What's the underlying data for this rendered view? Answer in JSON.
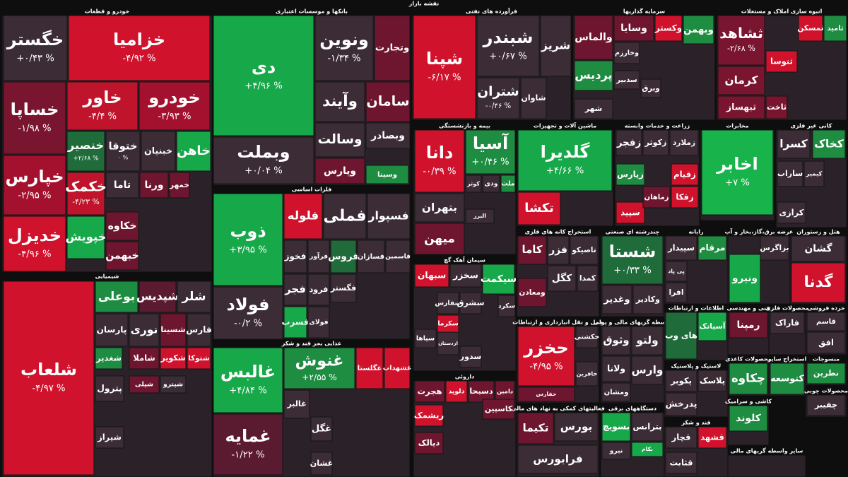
{
  "title": "نقشه بازار",
  "sectors": [
    {
      "name": "خودرو و قطعات",
      "tiles": [
        {
          "symbol": "خگستر",
          "change": "+۰/۴۳ %",
          "color": "#3b2c36"
        },
        {
          "symbol": "خزامیا",
          "change": "-۴/۹۲ %",
          "color": "#d0122c"
        },
        {
          "symbol": "خساپا",
          "change": "-۱/۹۸ %",
          "color": "#7a1530"
        },
        {
          "symbol": "خاور",
          "change": "-۴/۴ %",
          "color": "#c0142c"
        },
        {
          "symbol": "خودرو",
          "change": "-۳/۹۳ %",
          "color": "#a3112e"
        },
        {
          "symbol": "خپارس",
          "change": "-۲/۹۵ %",
          "color": "#a3112e"
        },
        {
          "symbol": "خدیزل",
          "change": "-۴/۹۶ %",
          "color": "#d0122c"
        },
        {
          "symbol": "خنصیر",
          "change": "+۲/۶۸ %",
          "color": "#1f6b3a"
        },
        {
          "symbol": "ختوقا",
          "change": "۰ %",
          "color": "#3b2c36"
        },
        {
          "symbol": "خبنیان",
          "color": "#3b2c36"
        },
        {
          "symbol": "خاهن",
          "color": "#17a84a"
        },
        {
          "symbol": "خکمک",
          "change": "-۴/۲۳ %",
          "color": "#c0142c"
        },
        {
          "symbol": "خپویش",
          "color": "#17a84a"
        },
        {
          "symbol": "تاما",
          "color": "#3b2c36"
        },
        {
          "symbol": "خکاوه",
          "color": "#6e1630"
        },
        {
          "symbol": "خبهمن",
          "color": "#6e1630"
        },
        {
          "symbol": "ورنا",
          "color": "#6e1630"
        },
        {
          "symbol": "خمهر",
          "color": "#6e1630"
        }
      ]
    },
    {
      "name": "بانکها و موسسات اعتباری",
      "tiles": [
        {
          "symbol": "دی",
          "change": "+۴/۹۶ %",
          "color": "#17a84a"
        },
        {
          "symbol": "ونوین",
          "change": "-۱/۳۴ %",
          "color": "#3b2c36"
        },
        {
          "symbol": "وتجارت",
          "color": "#6e1630"
        },
        {
          "symbol": "وبملت",
          "change": "+۰/۰۴ %",
          "color": "#3b2c36"
        },
        {
          "symbol": "وآیند",
          "color": "#3b2c36"
        },
        {
          "symbol": "سامان",
          "color": "#6e1630"
        },
        {
          "symbol": "وسالت",
          "color": "#3b2c36"
        },
        {
          "symbol": "وبصادر",
          "color": "#3b2c36"
        },
        {
          "symbol": "وپارس",
          "color": "#6e1630"
        },
        {
          "symbol": "وسینا",
          "color": "#1e8c41"
        }
      ]
    },
    {
      "name": "فلزات اساسی",
      "tiles": [
        {
          "symbol": "ذوب",
          "change": "+۳/۹۵ %",
          "color": "#17a84a"
        },
        {
          "symbol": "فولاد",
          "change": "-۰/۲ %",
          "color": "#3b2c36"
        },
        {
          "symbol": "فلوله",
          "color": "#d0122c"
        },
        {
          "symbol": "فملی",
          "color": "#3b2c36"
        },
        {
          "symbol": "فسپوار",
          "color": "#3b2c36"
        },
        {
          "symbol": "فخوز",
          "color": "#3b2c36"
        },
        {
          "symbol": "فرآور",
          "color": "#3b2c36"
        },
        {
          "symbol": "فروس",
          "color": "#1f6b3a"
        },
        {
          "symbol": "فسازان",
          "color": "#3b2c36"
        },
        {
          "symbol": "فاسمین",
          "color": "#3b2c36"
        },
        {
          "symbol": "فجر",
          "color": "#3b2c36"
        },
        {
          "symbol": "فرود",
          "color": "#3b2c36"
        },
        {
          "symbol": "فگستر",
          "color": "#3b2c36"
        },
        {
          "symbol": "فسرب",
          "color": "#17a84a"
        },
        {
          "symbol": "فولای",
          "color": "#3b2c36"
        }
      ]
    },
    {
      "name": "غذایی بجز قند و شکر",
      "tiles": [
        {
          "symbol": "غالبس",
          "change": "+۴/۸۴ %",
          "color": "#17a84a"
        },
        {
          "symbol": "غمایه",
          "change": "-۱/۲۲ %",
          "color": "#5a1a30"
        },
        {
          "symbol": "غنوش",
          "change": "+۲/۵۵ %",
          "color": "#1e8c41"
        },
        {
          "symbol": "غگلستا",
          "color": "#d0122c"
        },
        {
          "symbol": "غشهداب",
          "color": "#d0122c"
        },
        {
          "symbol": "غالبر",
          "color": "#3b2c36"
        },
        {
          "symbol": "غگل",
          "color": "#3b2c36"
        },
        {
          "symbol": "غشان",
          "color": "#3b2c36"
        }
      ]
    },
    {
      "name": "شیمیایی",
      "tiles": [
        {
          "symbol": "شلعاب",
          "change": "-۴/۹۷ %",
          "color": "#d0122c"
        },
        {
          "symbol": "بوعلی",
          "color": "#1e8c41"
        },
        {
          "symbol": "شپدیس",
          "color": "#5a1a30"
        },
        {
          "symbol": "شلر",
          "color": "#3b2c36"
        },
        {
          "symbol": "پارسان",
          "color": "#3b2c36"
        },
        {
          "symbol": "نوری",
          "color": "#3b2c36"
        },
        {
          "symbol": "شسینا",
          "color": "#6e1630"
        },
        {
          "symbol": "فارس",
          "color": "#3b2c36"
        },
        {
          "symbol": "شغدیر",
          "color": "#1e8c41"
        },
        {
          "symbol": "شاملا",
          "color": "#6e1630"
        },
        {
          "symbol": "شکویر",
          "color": "#d0122c"
        },
        {
          "symbol": "شتوکا",
          "color": "#d0122c"
        },
        {
          "symbol": "پترول",
          "color": "#3b2c36"
        },
        {
          "symbol": "شیراز",
          "color": "#3b2c36"
        },
        {
          "symbol": "شپلی",
          "color": "#6e1630"
        },
        {
          "symbol": "شپترو",
          "color": "#3b2c36"
        }
      ]
    },
    {
      "name": "فرآورده های نفتی",
      "tiles": [
        {
          "symbol": "شپنا",
          "change": "-۶/۱۷ %",
          "color": "#d0122c"
        },
        {
          "symbol": "شبندر",
          "change": "+۰/۶۷ %",
          "color": "#3b2c36"
        },
        {
          "symbol": "شریز",
          "color": "#3b2c36"
        },
        {
          "symbol": "شتران",
          "change": "-۰/۴۶ %",
          "color": "#3b2c36"
        },
        {
          "symbol": "شاوان",
          "color": "#3b2c36"
        }
      ]
    },
    {
      "name": "سرمایه گذاریها",
      "tiles": [
        {
          "symbol": "والماس",
          "color": "#6e1630"
        },
        {
          "symbol": "وسایا",
          "color": "#6e1630"
        },
        {
          "symbol": "وکستر",
          "color": "#d0122c"
        },
        {
          "symbol": "وبهمن",
          "color": "#1e8c41"
        },
        {
          "symbol": "پردیس",
          "color": "#1e8c41"
        },
        {
          "symbol": "وخارزم",
          "color": "#3b2c36"
        },
        {
          "symbol": "سدبیر",
          "color": "#3b2c36"
        },
        {
          "symbol": "وبرق",
          "color": "#3b2c36"
        },
        {
          "symbol": "شهر",
          "color": "#3b2c36"
        }
      ]
    },
    {
      "name": "انبوه سازی املاک و مستغلات",
      "tiles": [
        {
          "symbol": "ثشاهد",
          "change": "-۲/۶۸ %",
          "color": "#7a1530"
        },
        {
          "symbol": "ثامید",
          "color": "#1e8c41"
        },
        {
          "symbol": "ثمسکن",
          "color": "#d0122c"
        },
        {
          "symbol": "ثنوسا",
          "color": "#d0122c"
        },
        {
          "symbol": "کرمان",
          "color": "#7a1530"
        },
        {
          "symbol": "ثبهساز",
          "color": "#7a1530"
        },
        {
          "symbol": "ثاخت",
          "color": "#7a1530"
        }
      ]
    },
    {
      "name": "بیمه و بازنشستگی",
      "tiles": [
        {
          "symbol": "دانا",
          "change": "-۰/۳۹ %",
          "color": "#d0122c"
        },
        {
          "symbol": "آسیا",
          "change": "+۰/۴۶ %",
          "color": "#1e8c41"
        },
        {
          "symbol": "کوثر",
          "color": "#3b2c36"
        },
        {
          "symbol": "ودی",
          "color": "#3b2c36"
        },
        {
          "symbol": "ملت",
          "color": "#1e8c41"
        },
        {
          "symbol": "بتهران",
          "color": "#3b2c36"
        },
        {
          "symbol": "البرز",
          "color": "#3b2c36"
        },
        {
          "symbol": "میهن",
          "color": "#6e1630"
        }
      ]
    },
    {
      "name": "ماشین آلات و تجهیزات",
      "tiles": [
        {
          "symbol": "گلدیرا",
          "change": "+۴/۶۶ %",
          "color": "#17a84a"
        },
        {
          "symbol": "تکشا",
          "color": "#d0122c"
        }
      ]
    },
    {
      "name": "زراعت و خدمات وابسته",
      "tiles": [
        {
          "symbol": "زفجر",
          "color": "#3b2c36"
        },
        {
          "symbol": "زکوثر",
          "color": "#3b2c36"
        },
        {
          "symbol": "زملارد",
          "color": "#3b2c36"
        },
        {
          "symbol": "زپارس",
          "color": "#1e8c41"
        },
        {
          "symbol": "زقیام",
          "color": "#d0122c"
        },
        {
          "symbol": "زفکا",
          "color": "#d0122c"
        },
        {
          "symbol": "سپید",
          "color": "#d0122c"
        },
        {
          "symbol": "زماهان",
          "color": "#6e1630"
        }
      ]
    },
    {
      "name": "مخابرات",
      "tiles": [
        {
          "symbol": "اخابر",
          "change": "+۷ %",
          "color": "#18b34a"
        }
      ]
    },
    {
      "name": "کانی غیر فلزی",
      "tiles": [
        {
          "symbol": "کسرا",
          "color": "#3b2c36"
        },
        {
          "symbol": "کخاک",
          "color": "#1e8c41"
        },
        {
          "symbol": "ساراب",
          "color": "#3b2c36"
        },
        {
          "symbol": "کیمیر",
          "color": "#3b2c36"
        },
        {
          "symbol": "کرازی",
          "color": "#3b2c36"
        }
      ]
    },
    {
      "name": "سیمان آهک گچ",
      "tiles": [
        {
          "symbol": "سبهان",
          "color": "#d0122c"
        },
        {
          "symbol": "سخزر",
          "color": "#3b2c36"
        },
        {
          "symbol": "سیکمت",
          "color": "#17a84a"
        },
        {
          "symbol": "سفارس",
          "color": "#3b2c36"
        },
        {
          "symbol": "سشرق",
          "color": "#3b2c36"
        },
        {
          "symbol": "سکرد",
          "color": "#3b2c36"
        },
        {
          "symbol": "سکرما",
          "color": "#d0122c"
        },
        {
          "symbol": "اردستان",
          "color": "#3b2c36"
        },
        {
          "symbol": "سدور",
          "color": "#3b2c36"
        },
        {
          "symbol": "سپاها",
          "color": "#3b2c36"
        }
      ]
    },
    {
      "name": "استخراج کانه های فلزی",
      "tiles": [
        {
          "symbol": "کاما",
          "color": "#6e1630"
        },
        {
          "symbol": "فزر",
          "color": "#3b2c36"
        },
        {
          "symbol": "تاصیکو",
          "color": "#3b2c36"
        },
        {
          "symbol": "کگل",
          "color": "#3b2c36"
        },
        {
          "symbol": "کمدا",
          "color": "#3b2c36"
        },
        {
          "symbol": "ومعادن",
          "color": "#6e1630"
        }
      ]
    },
    {
      "name": "چندرشته ای صنعتی",
      "tiles": [
        {
          "symbol": "شستا",
          "change": "+۰/۳۳ %",
          "color": "#1f6b3a"
        },
        {
          "symbol": "وغدیر",
          "color": "#3b2c36"
        },
        {
          "symbol": "وکادیر",
          "color": "#3b2c36"
        }
      ]
    },
    {
      "name": "رایانه",
      "tiles": [
        {
          "symbol": "سپیدار",
          "color": "#3b2c36"
        },
        {
          "symbol": "مرقام",
          "color": "#1e8c41"
        },
        {
          "symbol": "پی پاد",
          "color": "#3b2c36"
        },
        {
          "symbol": "افرا",
          "color": "#3b2c36"
        }
      ]
    },
    {
      "name": "عرضه برق،گاز،بخار و آب",
      "tiles": [
        {
          "symbol": "بزاگرس",
          "color": "#3b2c36"
        },
        {
          "symbol": "ونیرو",
          "color": "#17a84a"
        }
      ]
    },
    {
      "name": "هتل و رستوران",
      "tiles": [
        {
          "symbol": "گشان",
          "color": "#3b2c36"
        },
        {
          "symbol": "گدنا",
          "color": "#d0122c"
        }
      ]
    },
    {
      "name": "حمل و نقل انبارداری و ارتباطات",
      "tiles": [
        {
          "symbol": "حخزر",
          "change": "-۴/۹۵ %",
          "color": "#d0122c"
        },
        {
          "symbol": "حکشتی",
          "color": "#3b2c36"
        },
        {
          "symbol": "حافرین",
          "color": "#3b2c36"
        },
        {
          "symbol": "حفارس",
          "color": "#6e1630"
        }
      ]
    },
    {
      "name": "داروئی",
      "tiles": [
        {
          "symbol": "هجرت",
          "color": "#6e1630"
        },
        {
          "symbol": "دلوپد",
          "color": "#d0122c"
        },
        {
          "symbol": "دسبحا",
          "color": "#6e1630"
        },
        {
          "symbol": "دامین",
          "color": "#6e1630"
        },
        {
          "symbol": "کاسپین",
          "color": "#6e1630"
        },
        {
          "symbol": "ریشمک",
          "color": "#d0122c"
        },
        {
          "symbol": "دیالک",
          "color": "#6e1630"
        }
      ]
    },
    {
      "name": "فعالیتهای کمکی به نهاد های مالی",
      "tiles": [
        {
          "symbol": "تکیما",
          "color": "#6e1630"
        },
        {
          "symbol": "بورس",
          "color": "#3b2c36"
        },
        {
          "symbol": "فرابورس",
          "color": "#3b2c36"
        }
      ]
    },
    {
      "name": "واسطه گریهای مالی و پولی",
      "tiles": [
        {
          "symbol": "وثوق",
          "color": "#3b2c36"
        },
        {
          "symbol": "ولتو",
          "color": "#3b2c36"
        },
        {
          "symbol": "وارس",
          "color": "#3b2c36"
        },
        {
          "symbol": "ولانا",
          "color": "#3b2c36"
        },
        {
          "symbol": "ومشان",
          "color": "#3b2c36"
        }
      ]
    },
    {
      "name": "اطلاعات و ارتباطات",
      "tiles": [
        {
          "symbol": "آسیاتک",
          "color": "#17a84a"
        },
        {
          "symbol": "های وب",
          "color": "#1f6b3a"
        }
      ]
    },
    {
      "name": "فنی و مهندسی",
      "tiles": [
        {
          "symbol": "رمپنا",
          "color": "#6e1630"
        }
      ]
    },
    {
      "name": "محصولات فلزی",
      "tiles": [
        {
          "symbol": "فاراک",
          "color": "#3b2c36"
        }
      ]
    },
    {
      "name": "خرده فروشی",
      "tiles": [
        {
          "symbol": "قاسم",
          "color": "#3b2c36"
        },
        {
          "symbol": "افق",
          "color": "#3b2c36"
        }
      ]
    },
    {
      "name": "دستگاههای برقی",
      "tiles": [
        {
          "symbol": "بترانس",
          "color": "#3b2c36"
        },
        {
          "symbol": "بسویچ",
          "color": "#17a84a"
        },
        {
          "symbol": "بکام",
          "color": "#17a84a"
        },
        {
          "symbol": "نیرو",
          "color": "#3b2c36"
        }
      ]
    },
    {
      "name": "لاستیک و پلاستیک",
      "tiles": [
        {
          "symbol": "پکویر",
          "color": "#3b2c36"
        },
        {
          "symbol": "پلاسک",
          "color": "#3b2c36"
        },
        {
          "symbol": "پدرخش",
          "color": "#3b2c36"
        }
      ]
    },
    {
      "name": "قند و شکر",
      "tiles": [
        {
          "symbol": "قچار",
          "color": "#3b2c36"
        },
        {
          "symbol": "قشهد",
          "color": "#d0122c"
        },
        {
          "symbol": "قثابت",
          "color": "#3b2c36"
        }
      ]
    },
    {
      "name": "محصولات کاغذی",
      "tiles": [
        {
          "symbol": "چکاوه",
          "color": "#1e8c41"
        }
      ]
    },
    {
      "name": "کاشی و سرامیک",
      "tiles": [
        {
          "symbol": "کلوند",
          "color": "#1e8c41"
        }
      ]
    },
    {
      "name": "استخراج سایر",
      "tiles": [
        {
          "symbol": "کتوسعه",
          "color": "#1e8c41"
        }
      ]
    },
    {
      "name": "منسوجات",
      "tiles": [
        {
          "symbol": "نطرین",
          "color": "#1e8c41"
        }
      ]
    },
    {
      "name": "محصولات چوبی",
      "tiles": [
        {
          "symbol": "چفیبر",
          "color": "#3b2c36"
        }
      ]
    },
    {
      "name": "سایر واسطه گریهای مالی",
      "tiles": []
    }
  ]
}
